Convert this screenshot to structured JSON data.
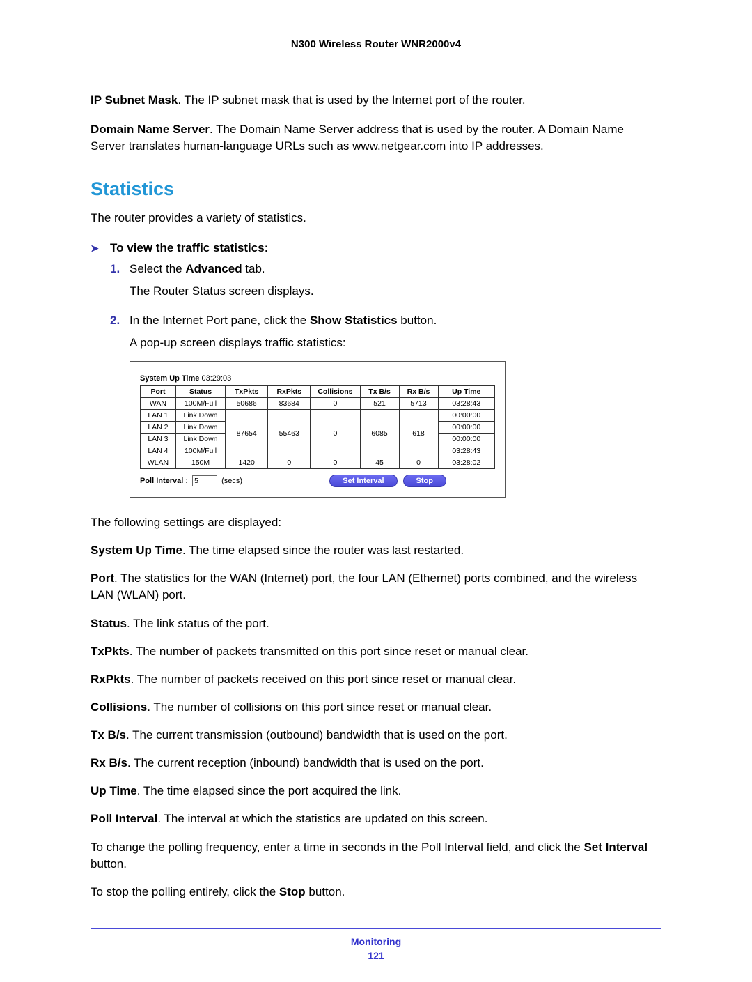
{
  "header": {
    "title": "N300 Wireless Router WNR2000v4"
  },
  "intro": {
    "ipMask": {
      "label": "IP Subnet Mask",
      "text": ". The IP subnet mask that is used by the Internet port of the router."
    },
    "dns": {
      "label": "Domain Name Server",
      "text": ". The Domain Name Server address that is used by the router. A Domain Name Server translates human-language URLs such as www.netgear.com into IP addresses."
    }
  },
  "section": {
    "title": "Statistics",
    "lead": "The router provides a variety of statistics."
  },
  "instr": {
    "heading": "To view the traffic statistics:",
    "step1": {
      "num": "1.",
      "pre": "Select the ",
      "bold": "Advanced",
      "post": " tab.",
      "sub": "The Router Status screen displays."
    },
    "step2": {
      "num": "2.",
      "pre": "In the Internet Port pane, click the ",
      "bold": "Show Statistics",
      "post": " button.",
      "sub": "A pop-up screen displays traffic statistics:"
    }
  },
  "shot": {
    "sysup_label": "System Up Time",
    "sysup_value": "03:29:03",
    "columns": {
      "port": "Port",
      "status": "Status",
      "txpkts": "TxPkts",
      "rxpkts": "RxPkts",
      "collisions": "Collisions",
      "txbs": "Tx B/s",
      "rxbs": "Rx B/s",
      "uptime": "Up Time"
    },
    "wan": {
      "port": "WAN",
      "status": "100M/Full",
      "tx": "50686",
      "rx": "83684",
      "coll": "0",
      "txbs": "521",
      "rxbs": "5713",
      "up": "03:28:43"
    },
    "lan1": {
      "port": "LAN 1",
      "status": "Link Down",
      "up": "00:00:00"
    },
    "lan2": {
      "port": "LAN 2",
      "status": "Link Down",
      "up": "00:00:00"
    },
    "lan3": {
      "port": "LAN 3",
      "status": "Link Down",
      "up": "00:00:00"
    },
    "lan4": {
      "port": "LAN 4",
      "status": "100M/Full",
      "up": "03:28:43"
    },
    "lan_agg": {
      "tx": "87654",
      "rx": "55463",
      "coll": "0",
      "txbs": "6085",
      "rxbs": "618"
    },
    "wlan": {
      "port": "WLAN",
      "status": "150M",
      "tx": "1420",
      "rx": "0",
      "coll": "0",
      "txbs": "45",
      "rxbs": "0",
      "up": "03:28:02"
    },
    "poll_label": "Poll Interval :",
    "poll_value": "5",
    "poll_unit": "(secs)",
    "btn_set": "Set Interval",
    "btn_stop": "Stop"
  },
  "defs": {
    "lead": "The following settings are displayed:",
    "sysup": {
      "label": "System Up Time",
      "text": ". The time elapsed since the router was last restarted."
    },
    "port": {
      "label": "Port",
      "text": ". The statistics for the WAN (Internet) port, the four LAN (Ethernet) ports combined, and the wireless LAN (WLAN) port."
    },
    "status": {
      "label": "Status",
      "text": ". The link status of the port."
    },
    "txpkts": {
      "label": "TxPkts",
      "text": ". The number of packets transmitted on this port since reset or manual clear."
    },
    "rxpkts": {
      "label": "RxPkts",
      "text": ". The number of packets received on this port since reset or manual clear."
    },
    "coll": {
      "label": "Collisions",
      "text": ". The number of collisions on this port since reset or manual clear."
    },
    "txbs": {
      "label": "Tx B/s",
      "text": ". The current transmission (outbound) bandwidth that is used on the port."
    },
    "rxbs": {
      "label": "Rx B/s",
      "text": ". The current reception (inbound) bandwidth that is used on the port."
    },
    "uptime": {
      "label": "Up Time",
      "text": ". The time elapsed since the port acquired the link."
    },
    "pollint": {
      "label": "Poll Interval",
      "text": ". The interval at which the statistics are updated on this screen."
    },
    "change1": "To change the polling frequency, enter a time in seconds in the Poll Interval field, and click the ",
    "change1b": "Set Interval",
    "change1c": " button.",
    "stop1": "To stop the polling entirely, click the ",
    "stop1b": "Stop",
    "stop1c": " button."
  },
  "footer": {
    "section": "Monitoring",
    "page": "121"
  }
}
